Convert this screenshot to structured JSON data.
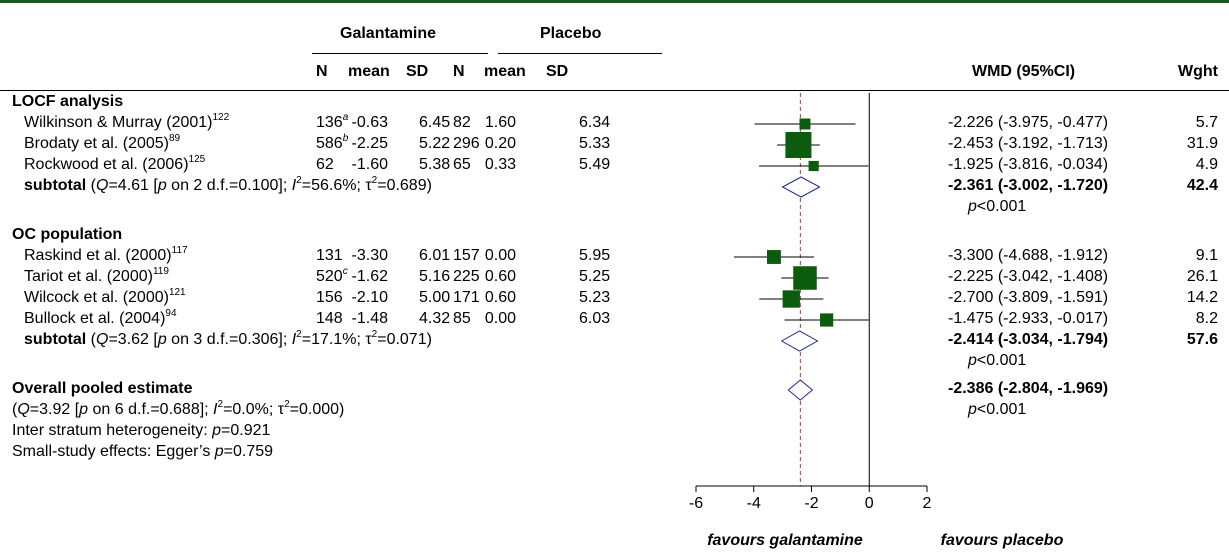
{
  "chart_data": {
    "type": "forest",
    "headers": {
      "group1": "Galantamine",
      "group2": "Placebo",
      "n": "N",
      "mean": "mean",
      "sd": "SD",
      "wmd": "WMD (95%CI)",
      "weight": "Wght"
    },
    "strata": [
      {
        "label": "LOCF analysis",
        "studies": [
          {
            "name": "Wilkinson & Murray (2001)",
            "ref": "122",
            "n1": "136",
            "n1_note": "a",
            "mean1": "-0.63",
            "sd1": "6.45",
            "n2": "82",
            "mean2": "1.60",
            "sd2": "6.34",
            "wmd": -2.226,
            "lo": -3.975,
            "hi": -0.477,
            "ci_text": "-2.226 (-3.975, -0.477)",
            "weight": 5.7,
            "weight_text": "5.7"
          },
          {
            "name": "Brodaty et al.  (2005)",
            "ref": "89",
            "n1": "586",
            "n1_note": "b",
            "mean1": "-2.25",
            "sd1": "5.22",
            "n2": "296",
            "mean2": "0.20",
            "sd2": "5.33",
            "wmd": -2.453,
            "lo": -3.192,
            "hi": -1.713,
            "ci_text": "-2.453 (-3.192, -1.713)",
            "weight": 31.9,
            "weight_text": "31.9"
          },
          {
            "name": "Rockwood et al.  (2006)",
            "ref": "125",
            "n1": "62",
            "n1_note": "",
            "mean1": "-1.60",
            "sd1": "5.38",
            "n2": "65",
            "mean2": "0.33",
            "sd2": "5.49",
            "wmd": -1.925,
            "lo": -3.816,
            "hi": -0.034,
            "ci_text": "-1.925 (-3.816, -0.034)",
            "weight": 4.9,
            "weight_text": "4.9"
          }
        ],
        "subtotal": {
          "q": "4.61",
          "df": "2",
          "p": "0.100",
          "i2": "56.6%",
          "tau2": "0.689",
          "wmd": -2.361,
          "lo": -3.002,
          "hi": -1.72,
          "ci_text": "-2.361 (-3.002, -1.720)",
          "weight_text": "42.4",
          "pval": "<0.001"
        }
      },
      {
        "label": "OC population",
        "studies": [
          {
            "name": "Raskind et al.  (2000)",
            "ref": "117",
            "n1": "131",
            "n1_note": "",
            "mean1": "-3.30",
            "sd1": "6.01",
            "n2": "157",
            "mean2": "0.00",
            "sd2": "5.95",
            "wmd": -3.3,
            "lo": -4.688,
            "hi": -1.912,
            "ci_text": "-3.300 (-4.688, -1.912)",
            "weight": 9.1,
            "weight_text": "9.1"
          },
          {
            "name": "Tariot et al.  (2000)",
            "ref": "119",
            "n1": "520",
            "n1_note": "c",
            "mean1": "-1.62",
            "sd1": "5.16",
            "n2": "225",
            "mean2": "0.60",
            "sd2": "5.25",
            "wmd": -2.225,
            "lo": -3.042,
            "hi": -1.408,
            "ci_text": "-2.225 (-3.042, -1.408)",
            "weight": 26.1,
            "weight_text": "26.1"
          },
          {
            "name": "Wilcock et al.  (2000)",
            "ref": "121",
            "n1": "156",
            "n1_note": "",
            "mean1": "-2.10",
            "sd1": "5.00",
            "n2": "171",
            "mean2": "0.60",
            "sd2": "5.23",
            "wmd": -2.7,
            "lo": -3.809,
            "hi": -1.591,
            "ci_text": "-2.700 (-3.809, -1.591)",
            "weight": 14.2,
            "weight_text": "14.2"
          },
          {
            "name": "Bullock et al.  (2004)",
            "ref": "94",
            "n1": "148",
            "n1_note": "",
            "mean1": "-1.48",
            "sd1": "4.32",
            "n2": "85",
            "mean2": "0.00",
            "sd2": "6.03",
            "wmd": -1.475,
            "lo": -2.933,
            "hi": -0.017,
            "ci_text": "-1.475 (-2.933, -0.017)",
            "weight": 8.2,
            "weight_text": "8.2"
          }
        ],
        "subtotal": {
          "q": "3.62",
          "df": "3",
          "p": "0.306",
          "i2": "17.1%",
          "tau2": "0.071",
          "wmd": -2.414,
          "lo": -3.034,
          "hi": -1.794,
          "ci_text": "-2.414 (-3.034, -1.794)",
          "weight_text": "57.6",
          "pval": "<0.001"
        }
      }
    ],
    "overall": {
      "label": "Overall pooled estimate",
      "q": "3.92",
      "df": "6",
      "p": "0.688",
      "i2": "0.0%",
      "tau2": "0.000",
      "wmd": -2.386,
      "lo": -2.804,
      "hi": -1.969,
      "ci_text": "-2.386 (-2.804, -1.969)",
      "pval": "<0.001"
    },
    "footer": {
      "inter_label": "Inter stratum heterogeneity: ",
      "inter_p": "=0.921",
      "egger_label": "Small-study effects: Egger’s ",
      "egger_p": "=0.759"
    },
    "axis": {
      "xlim": [
        -6,
        2
      ],
      "ticks": [
        -6,
        -4,
        -2,
        0,
        2
      ],
      "tick_labels": [
        "-6",
        "-4",
        "-2",
        "0",
        "2"
      ],
      "null_line": 0,
      "left_label": "favours galantamine",
      "right_label": "favours placebo"
    },
    "colors": {
      "marker": "#0d5c0d",
      "diamond": "#1f2a8a",
      "dashed": "#b03a3a",
      "topbar": "#1a5a1a"
    }
  }
}
